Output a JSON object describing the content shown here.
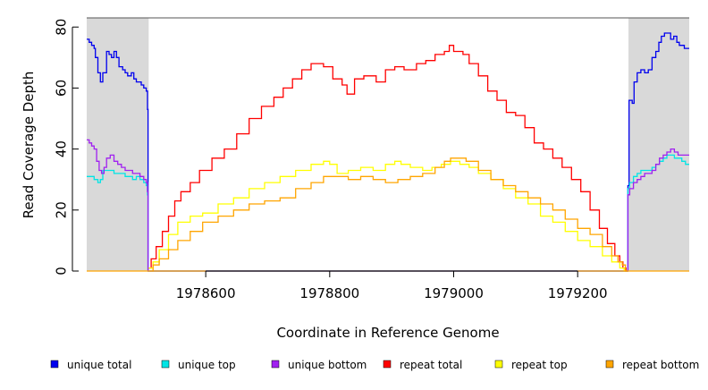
{
  "chart_data": {
    "type": "line",
    "title": "",
    "xlabel": "Coordinate in Reference Genome",
    "ylabel": "Read Coverage Depth",
    "xlim": [
      1978408,
      1979380
    ],
    "ylim": [
      0,
      83
    ],
    "xticks": [
      1978600,
      1978800,
      1979000,
      1979200
    ],
    "xtick_labels": [
      "1978600",
      "1978800",
      "1979000",
      "1979200"
    ],
    "yticks": [
      0,
      20,
      40,
      60,
      80
    ],
    "ytick_labels": [
      "0",
      "20",
      "40",
      "60",
      "80"
    ],
    "grid": false,
    "legend_position": "bottom",
    "shaded_regions": [
      {
        "x0": 1978408,
        "x1": 1978508,
        "color": "#d9d9d9"
      },
      {
        "x0": 1979282,
        "x1": 1979380,
        "color": "#d9d9d9"
      }
    ],
    "series": [
      {
        "name": "unique total",
        "color": "#0000ee",
        "step": true,
        "x": [
          1978408,
          1978412,
          1978416,
          1978420,
          1978422,
          1978426,
          1978430,
          1978434,
          1978440,
          1978444,
          1978448,
          1978452,
          1978456,
          1978460,
          1978466,
          1978470,
          1978474,
          1978480,
          1978484,
          1978488,
          1978492,
          1978496,
          1978500,
          1978504,
          1978506,
          1978507,
          1978508,
          1978800,
          1979000,
          1979280,
          1979281,
          1979283,
          1979288,
          1979291,
          1979296,
          1979302,
          1979308,
          1979314,
          1979320,
          1979326,
          1979331,
          1979335,
          1979340,
          1979345,
          1979350,
          1979355,
          1979360,
          1979364,
          1979368,
          1979372,
          1979376,
          1979380
        ],
        "y": [
          76,
          75,
          74,
          73,
          70,
          65,
          62,
          65,
          72,
          71,
          70,
          72,
          70,
          67,
          66,
          65,
          64,
          65,
          63,
          62,
          62,
          61,
          60,
          59,
          53,
          0,
          0,
          0,
          0,
          0,
          28,
          56,
          55,
          62,
          65,
          66,
          65,
          66,
          70,
          72,
          75,
          77,
          78,
          78,
          76,
          77,
          75,
          74,
          74,
          73,
          73,
          73
        ]
      },
      {
        "name": "unique top",
        "color": "#00e5e5",
        "step": true,
        "x": [
          1978408,
          1978414,
          1978420,
          1978426,
          1978430,
          1978434,
          1978440,
          1978446,
          1978452,
          1978458,
          1978464,
          1978470,
          1978476,
          1978482,
          1978488,
          1978494,
          1978500,
          1978504,
          1978506,
          1978507,
          1978508,
          1979280,
          1979281,
          1979284,
          1979290,
          1979296,
          1979302,
          1979308,
          1979314,
          1979320,
          1979326,
          1979332,
          1979338,
          1979344,
          1979350,
          1979356,
          1979362,
          1979368,
          1979374,
          1979380
        ],
        "y": [
          31,
          31,
          30,
          29,
          30,
          33,
          33,
          33,
          32,
          32,
          32,
          31,
          31,
          30,
          31,
          30,
          29,
          28,
          25,
          0,
          0,
          0,
          27,
          29,
          31,
          32,
          33,
          33,
          33,
          34,
          35,
          36,
          37,
          38,
          38,
          37,
          37,
          36,
          35,
          35
        ]
      },
      {
        "name": "unique bottom",
        "color": "#a020f0",
        "step": true,
        "x": [
          1978408,
          1978412,
          1978416,
          1978420,
          1978424,
          1978428,
          1978432,
          1978436,
          1978440,
          1978446,
          1978452,
          1978458,
          1978464,
          1978470,
          1978476,
          1978482,
          1978488,
          1978494,
          1978500,
          1978504,
          1978506,
          1978507,
          1978508,
          1979280,
          1979281,
          1979284,
          1979290,
          1979296,
          1979302,
          1979308,
          1979314,
          1979320,
          1979326,
          1979332,
          1979338,
          1979344,
          1979350,
          1979356,
          1979362,
          1979368,
          1979374,
          1979380
        ],
        "y": [
          43,
          42,
          41,
          40,
          36,
          33,
          32,
          34,
          37,
          38,
          36,
          35,
          34,
          33,
          33,
          32,
          32,
          31,
          30,
          29,
          26,
          0,
          0,
          0,
          25,
          27,
          29,
          30,
          31,
          32,
          32,
          33,
          35,
          37,
          38,
          39,
          40,
          39,
          38,
          38,
          38,
          38
        ]
      },
      {
        "name": "repeat total",
        "color": "#ff0000",
        "step": true,
        "x": [
          1978508,
          1978512,
          1978520,
          1978530,
          1978540,
          1978550,
          1978560,
          1978575,
          1978590,
          1978610,
          1978630,
          1978650,
          1978670,
          1978690,
          1978710,
          1978725,
          1978740,
          1978755,
          1978770,
          1978790,
          1978805,
          1978820,
          1978828,
          1978840,
          1978855,
          1978875,
          1978890,
          1978905,
          1978920,
          1978940,
          1978955,
          1978970,
          1978985,
          1978993,
          1979000,
          1979015,
          1979025,
          1979040,
          1979055,
          1979070,
          1979085,
          1979100,
          1979115,
          1979130,
          1979145,
          1979160,
          1979175,
          1979190,
          1979205,
          1979220,
          1979235,
          1979248,
          1979260,
          1979268,
          1979273,
          1979278,
          1979280
        ],
        "y": [
          1,
          4,
          8,
          13,
          18,
          23,
          26,
          29,
          33,
          37,
          40,
          45,
          50,
          54,
          57,
          60,
          63,
          66,
          68,
          67,
          63,
          61,
          58,
          63,
          64,
          62,
          66,
          67,
          66,
          68,
          69,
          71,
          72,
          74,
          72,
          71,
          68,
          64,
          59,
          56,
          52,
          51,
          47,
          42,
          40,
          37,
          34,
          30,
          26,
          20,
          14,
          9,
          5,
          3,
          1,
          0,
          0
        ]
      },
      {
        "name": "repeat top",
        "color": "#ffff00",
        "step": true,
        "x": [
          1978508,
          1978515,
          1978525,
          1978540,
          1978555,
          1978575,
          1978595,
          1978620,
          1978645,
          1978670,
          1978695,
          1978720,
          1978745,
          1978770,
          1978790,
          1978800,
          1978812,
          1978830,
          1978850,
          1978870,
          1978890,
          1978905,
          1978915,
          1978930,
          1978950,
          1978965,
          1978980,
          1978995,
          1979010,
          1979025,
          1979040,
          1979060,
          1979080,
          1979100,
          1979120,
          1979140,
          1979160,
          1979180,
          1979200,
          1979220,
          1979240,
          1979255,
          1979268,
          1979275,
          1979280
        ],
        "y": [
          1,
          3,
          7,
          12,
          16,
          18,
          19,
          22,
          24,
          27,
          29,
          31,
          33,
          35,
          36,
          35,
          32,
          33,
          34,
          33,
          35,
          36,
          35,
          34,
          33,
          34,
          35,
          36,
          35,
          34,
          32,
          30,
          27,
          24,
          22,
          18,
          16,
          13,
          10,
          8,
          5,
          3,
          1,
          0,
          0
        ]
      },
      {
        "name": "repeat bottom",
        "color": "#ffa500",
        "step": true,
        "x": [
          1978508,
          1978515,
          1978525,
          1978540,
          1978555,
          1978575,
          1978595,
          1978620,
          1978645,
          1978670,
          1978695,
          1978720,
          1978745,
          1978770,
          1978790,
          1978810,
          1978830,
          1978850,
          1978870,
          1978890,
          1978910,
          1978930,
          1978950,
          1978970,
          1978985,
          1978995,
          1979005,
          1979020,
          1979040,
          1979060,
          1979080,
          1979100,
          1979120,
          1979140,
          1979160,
          1979180,
          1979200,
          1979220,
          1979240,
          1979255,
          1979265,
          1979272,
          1979277,
          1979280
        ],
        "y": [
          0,
          2,
          4,
          7,
          10,
          13,
          16,
          18,
          20,
          22,
          23,
          24,
          27,
          29,
          31,
          31,
          30,
          31,
          30,
          29,
          30,
          31,
          32,
          34,
          36,
          37,
          37,
          36,
          33,
          30,
          28,
          26,
          24,
          22,
          20,
          17,
          14,
          12,
          8,
          5,
          3,
          2,
          0,
          0
        ]
      },
      {
        "name": "baseline",
        "color": "#ffa500",
        "step": false,
        "x": [
          1978408,
          1979380
        ],
        "y": [
          0,
          0
        ]
      }
    ]
  },
  "legend": [
    {
      "label": "unique total",
      "color": "#0000ee"
    },
    {
      "label": "unique top",
      "color": "#00e5e5"
    },
    {
      "label": "unique bottom",
      "color": "#a020f0"
    },
    {
      "label": "repeat total",
      "color": "#ff0000"
    },
    {
      "label": "repeat top",
      "color": "#ffff00"
    },
    {
      "label": "repeat bottom",
      "color": "#ffa500"
    }
  ]
}
